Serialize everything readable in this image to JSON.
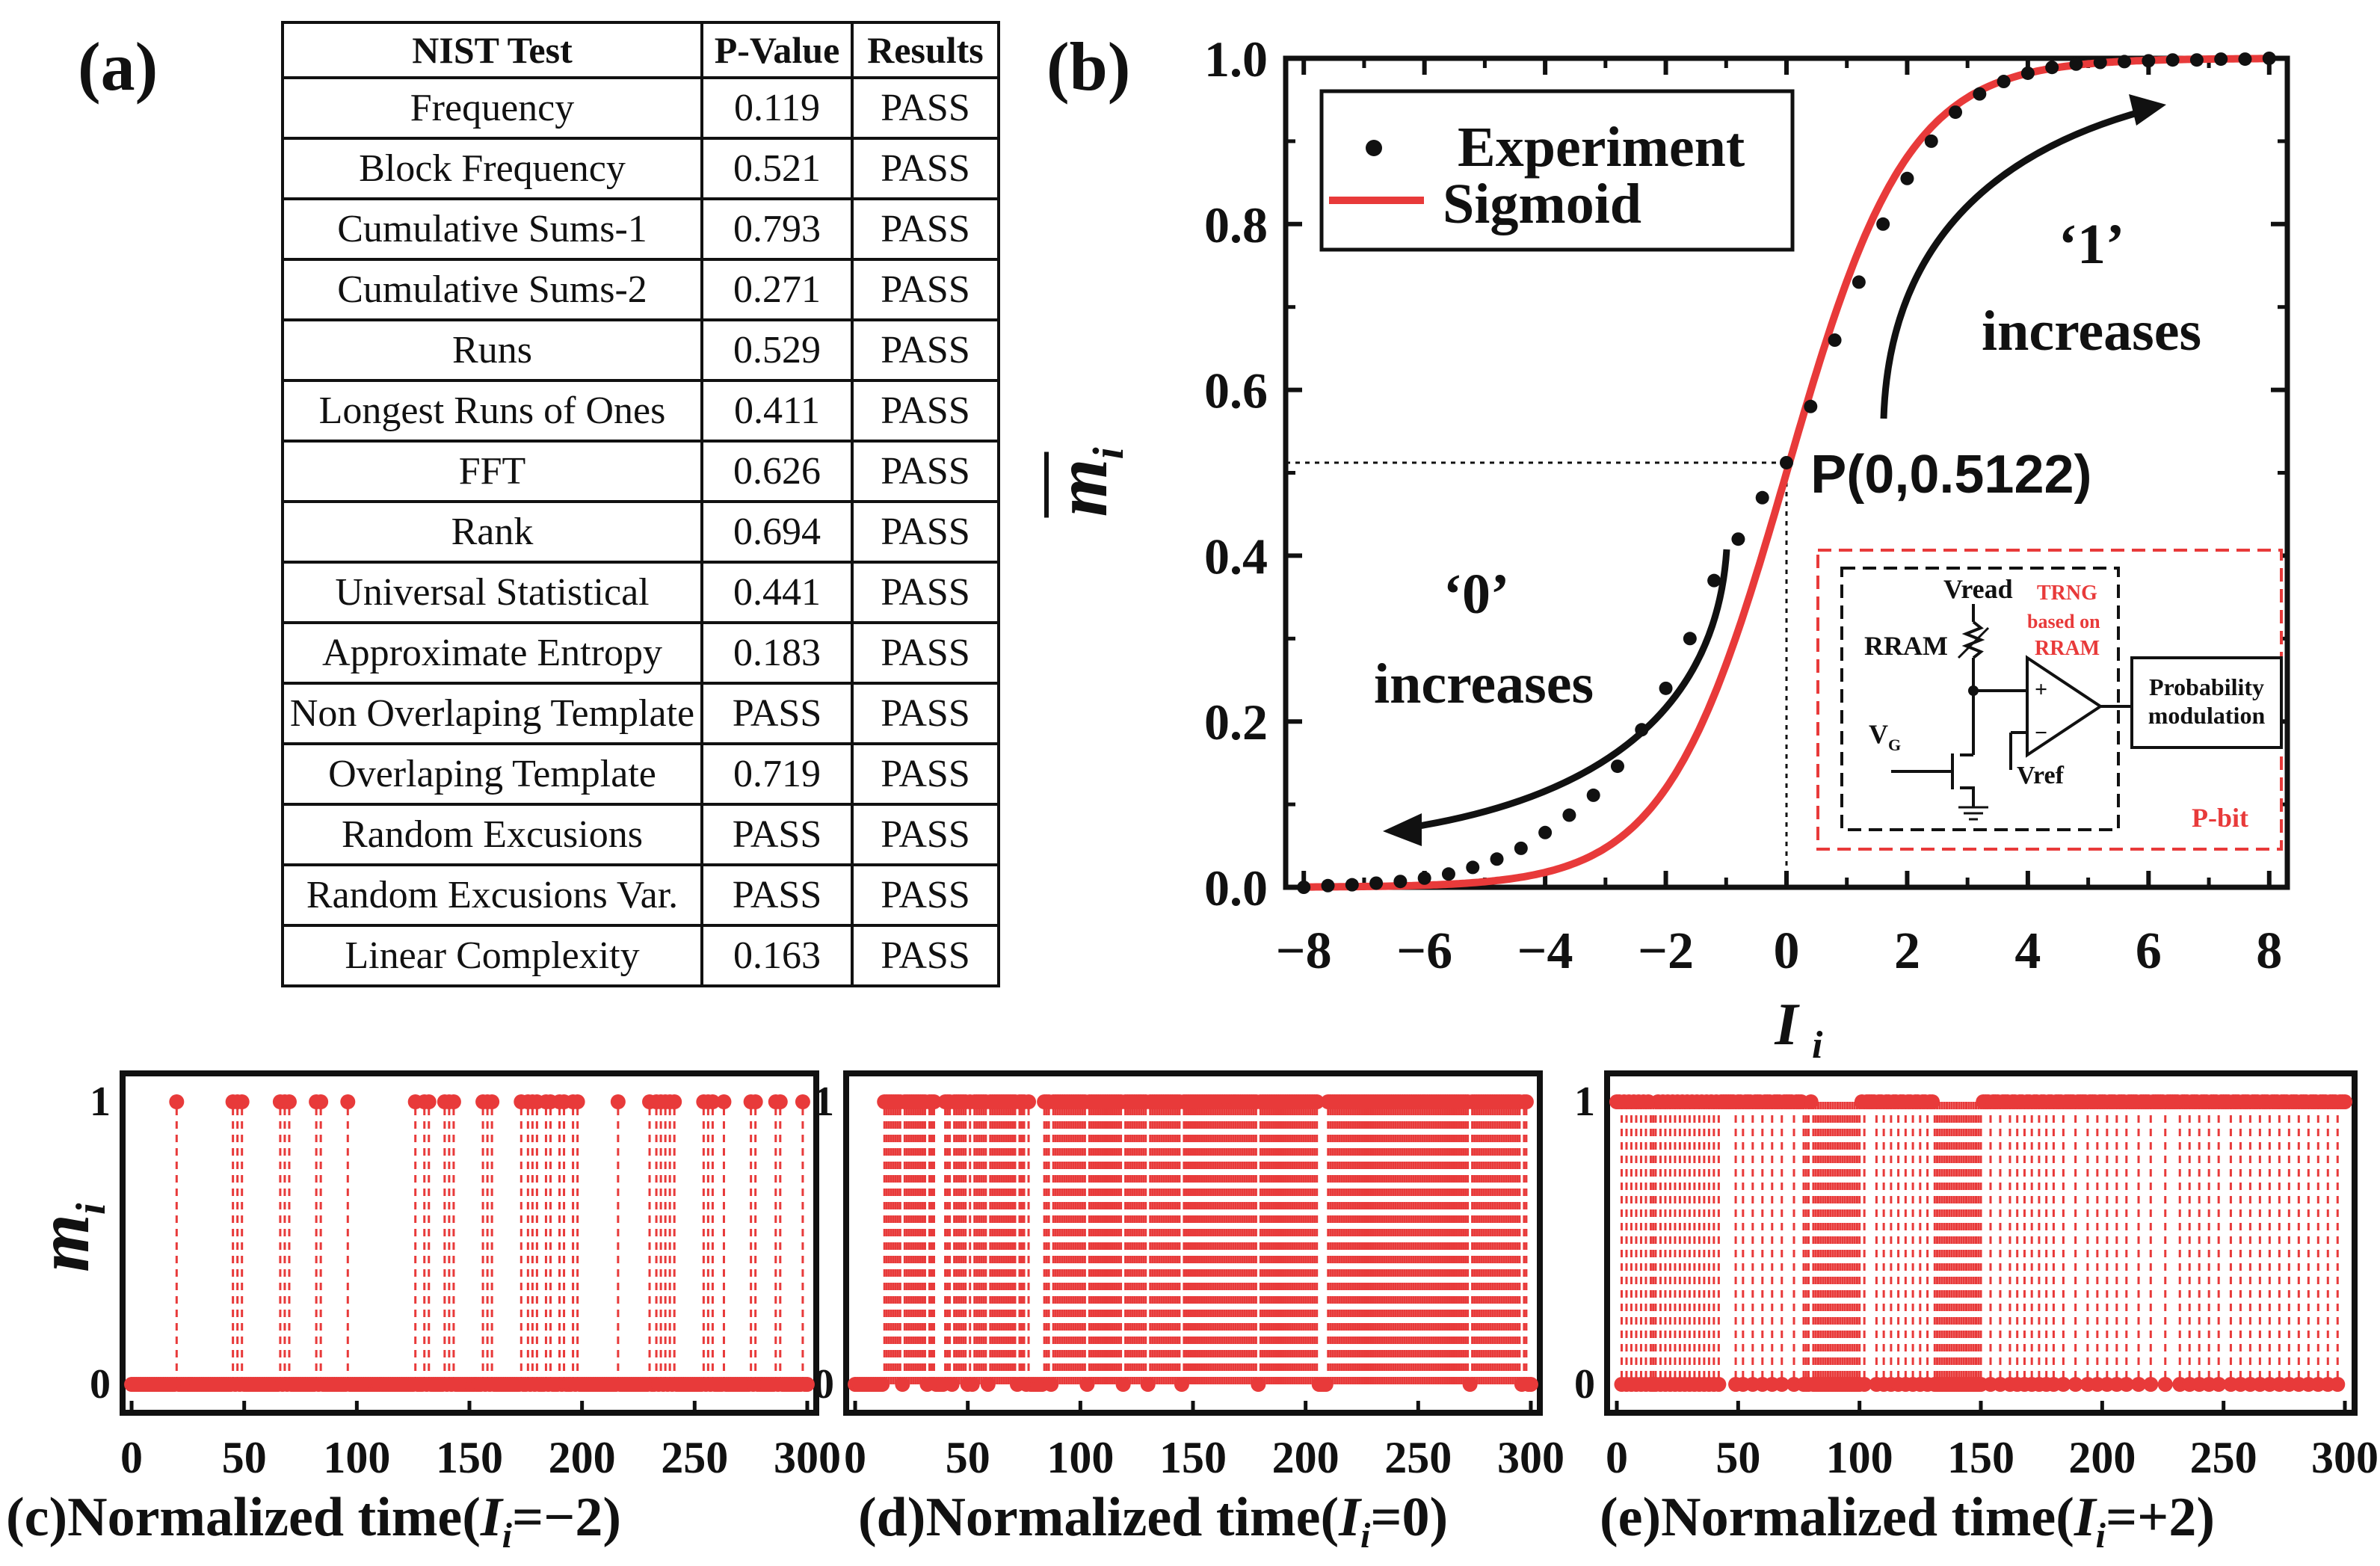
{
  "panels": {
    "a_label": "(a)",
    "b_label": "(b)",
    "c_title_pre": "(c)Normalized time(",
    "c_title_var": "I",
    "c_title_sub": "i",
    "c_title_post": "=−2)",
    "d_title_pre": "(d)Normalized time(",
    "d_title_var": "I",
    "d_title_sub": "i",
    "d_title_post": "=0)",
    "e_title_pre": "(e)Normalized time(",
    "e_title_var": "I",
    "e_title_sub": "i",
    "e_title_post": "=+2)"
  },
  "nist_table": {
    "headers": [
      "NIST Test",
      "P-Value",
      "Results"
    ],
    "rows": [
      [
        "Frequency",
        "0.119",
        "PASS"
      ],
      [
        "Block Frequency",
        "0.521",
        "PASS"
      ],
      [
        "Cumulative Sums-1",
        "0.793",
        "PASS"
      ],
      [
        "Cumulative Sums-2",
        "0.271",
        "PASS"
      ],
      [
        "Runs",
        "0.529",
        "PASS"
      ],
      [
        "Longest Runs of Ones",
        "0.411",
        "PASS"
      ],
      [
        "FFT",
        "0.626",
        "PASS"
      ],
      [
        "Rank",
        "0.694",
        "PASS"
      ],
      [
        "Universal Statistical",
        "0.441",
        "PASS"
      ],
      [
        "Approximate Entropy",
        "0.183",
        "PASS"
      ],
      [
        "Non Overlaping Template",
        "PASS",
        "PASS"
      ],
      [
        "Overlaping Template",
        "0.719",
        "PASS"
      ],
      [
        "Random Excusions",
        "PASS",
        "PASS"
      ],
      [
        "Random Excusions Var.",
        "PASS",
        "PASS"
      ],
      [
        "Linear Complexity",
        "0.163",
        "PASS"
      ]
    ]
  },
  "chart_data": [
    {
      "id": "b",
      "type": "scatter+line",
      "xlabel": "I",
      "xlabel_sub": "i",
      "ylabel": "m",
      "ylabel_sub": "i",
      "xlim": [
        -8.3,
        8.3
      ],
      "ylim": [
        0,
        1.0
      ],
      "xticks": [
        -8,
        -6,
        -4,
        -2,
        0,
        2,
        4,
        6,
        8
      ],
      "xtick_labels": [
        "−8",
        "−6",
        "−4",
        "−2",
        "0",
        "2",
        "4",
        "6",
        "8"
      ],
      "yticks": [
        0.0,
        0.2,
        0.4,
        0.6,
        0.8,
        1.0
      ],
      "ytick_labels": [
        "0.0",
        "0.2",
        "0.4",
        "0.6",
        "0.8",
        "1.0"
      ],
      "legend": [
        "Experiment",
        "Sigmoid"
      ],
      "legend_position": "top-left",
      "series": [
        {
          "name": "Experiment",
          "style": "black-dots",
          "x": [
            -8,
            -7.6,
            -7.2,
            -6.8,
            -6.4,
            -6,
            -5.6,
            -5.2,
            -4.8,
            -4.4,
            -4,
            -3.6,
            -3.2,
            -2.8,
            -2.4,
            -2,
            -1.6,
            -1.2,
            -0.8,
            -0.4,
            0,
            0.4,
            0.8,
            1.2,
            1.6,
            2,
            2.4,
            2.8,
            3.2,
            3.6,
            4,
            4.4,
            4.8,
            5.2,
            5.6,
            6,
            6.4,
            6.8,
            7.2,
            7.6,
            8
          ],
          "y": [
            0.0,
            0.002,
            0.003,
            0.005,
            0.007,
            0.011,
            0.016,
            0.024,
            0.034,
            0.047,
            0.066,
            0.087,
            0.111,
            0.146,
            0.19,
            0.24,
            0.3,
            0.37,
            0.42,
            0.47,
            0.5122,
            0.58,
            0.66,
            0.73,
            0.8,
            0.855,
            0.9,
            0.935,
            0.957,
            0.972,
            0.982,
            0.989,
            0.993,
            0.995,
            0.996,
            0.997,
            0.998,
            0.998,
            0.999,
            0.999,
            1.0
          ]
        },
        {
          "name": "Sigmoid",
          "style": "red-line",
          "function": "1/(1+exp(-x))"
        }
      ],
      "marked_point": {
        "label": "P(0,0.5122)",
        "x": 0,
        "y": 0.5122
      },
      "annotations": [
        {
          "text_1": "‘1’",
          "text_2": "increases"
        },
        {
          "text_1": "‘0’",
          "text_2": "increases"
        }
      ],
      "inset": {
        "vread": "Vread",
        "rram": "RRAM",
        "trng_1": "TRNG",
        "trng_2": "based on",
        "trng_3": "RRAM",
        "vg": "V",
        "vg_sub": "G",
        "vref": "Vref",
        "plus": "+",
        "minus": "−",
        "prob_1": "Probability",
        "prob_2": "modulation",
        "pbit": "P-bit"
      }
    },
    {
      "id": "c",
      "type": "binary-sequence",
      "ylabel": "m",
      "ylabel_sub": "i",
      "xlim": [
        -4,
        304
      ],
      "ylim": [
        0,
        1
      ],
      "xticks": [
        0,
        50,
        100,
        150,
        200,
        250,
        300
      ],
      "xtick_labels": [
        "0",
        "50",
        "100",
        "150",
        "200",
        "250",
        "300"
      ],
      "ytick_labels": [
        "0",
        "1"
      ],
      "ones_at": [
        20,
        45,
        47,
        49,
        66,
        68,
        70,
        82,
        84,
        96,
        126,
        130,
        132,
        139,
        141,
        143,
        156,
        158,
        160,
        173,
        176,
        178,
        180,
        184,
        186,
        190,
        192,
        196,
        198,
        216,
        230,
        233,
        235,
        237,
        239,
        241,
        254,
        256,
        258,
        263,
        275,
        277,
        286,
        288,
        298
      ]
    },
    {
      "id": "d",
      "type": "binary-sequence",
      "xlim": [
        -4,
        304
      ],
      "ylim": [
        0,
        1
      ],
      "xticks": [
        0,
        50,
        100,
        150,
        200,
        250,
        300
      ],
      "xtick_labels": [
        "0",
        "50",
        "100",
        "150",
        "200",
        "250",
        "300"
      ],
      "ytick_labels": [
        "0",
        "1"
      ],
      "ones_at": [
        13,
        14,
        15,
        16,
        17,
        18,
        19,
        20,
        22,
        23,
        24,
        25,
        26,
        27,
        28,
        29,
        30,
        31,
        33,
        34,
        35,
        40,
        41,
        42,
        44,
        45,
        46,
        47,
        48,
        49,
        51,
        53,
        54,
        55,
        56,
        57,
        58,
        60,
        61,
        62,
        63,
        64,
        65,
        66,
        67,
        68,
        69,
        70,
        71,
        73,
        74,
        75,
        77,
        84,
        85,
        86,
        88,
        89,
        90,
        91,
        92,
        93,
        94,
        95,
        96,
        97,
        98,
        99,
        100,
        101,
        102,
        104,
        105,
        106,
        107,
        108,
        109,
        110,
        111,
        112,
        113,
        114,
        115,
        116,
        117,
        118,
        120,
        121,
        122,
        123,
        124,
        125,
        126,
        127,
        128,
        129,
        131,
        132,
        133,
        134,
        135,
        136,
        137,
        138,
        139,
        140,
        141,
        142,
        143,
        144,
        146,
        147,
        148,
        149,
        150,
        151,
        152,
        153,
        154,
        155,
        156,
        157,
        158,
        159,
        160,
        161,
        162,
        163,
        164,
        165,
        166,
        167,
        168,
        169,
        170,
        171,
        172,
        173,
        174,
        175,
        176,
        177,
        178,
        180,
        181,
        182,
        183,
        184,
        185,
        186,
        187,
        188,
        189,
        190,
        191,
        192,
        193,
        194,
        195,
        196,
        197,
        198,
        199,
        200,
        201,
        202,
        203,
        204,
        205,
        210,
        211,
        212,
        213,
        214,
        215,
        216,
        217,
        218,
        219,
        220,
        221,
        222,
        223,
        224,
        225,
        226,
        227,
        228,
        229,
        230,
        231,
        232,
        233,
        234,
        235,
        236,
        237,
        238,
        239,
        240,
        241,
        242,
        243,
        244,
        245,
        246,
        247,
        248,
        249,
        250,
        251,
        252,
        253,
        254,
        255,
        256,
        257,
        258,
        259,
        260,
        261,
        262,
        263,
        264,
        265,
        266,
        267,
        268,
        269,
        270,
        271,
        272,
        274,
        275,
        276,
        277,
        278,
        279,
        280,
        281,
        282,
        283,
        284,
        285,
        286,
        287,
        288,
        289,
        290,
        291,
        292,
        293,
        294,
        295,
        297,
        298
      ]
    },
    {
      "id": "e",
      "type": "binary-sequence",
      "xlim": [
        -4,
        304
      ],
      "ylim": [
        0,
        1
      ],
      "xticks": [
        0,
        50,
        100,
        150,
        200,
        250,
        300
      ],
      "xtick_labels": [
        "0",
        "50",
        "100",
        "150",
        "200",
        "250",
        "300"
      ],
      "ytick_labels": [
        "0",
        "1"
      ],
      "zeros_at": [
        2,
        4,
        6,
        8,
        10,
        12,
        14,
        15,
        16,
        18,
        20,
        22,
        24,
        26,
        28,
        30,
        32,
        34,
        36,
        38,
        40,
        42,
        49,
        52,
        56,
        60,
        64,
        68,
        73,
        77,
        78,
        79,
        81,
        82,
        83,
        84,
        85,
        86,
        87,
        88,
        89,
        90,
        91,
        92,
        93,
        94,
        95,
        96,
        97,
        98,
        99,
        100,
        102,
        107,
        110,
        113,
        116,
        119,
        122,
        125,
        128,
        131,
        132,
        133,
        134,
        135,
        136,
        137,
        138,
        139,
        140,
        141,
        142,
        143,
        144,
        145,
        146,
        147,
        148,
        149,
        150,
        154,
        158,
        162,
        165,
        168,
        171,
        174,
        177,
        180,
        184,
        189,
        194,
        198,
        202,
        206,
        210,
        215,
        220,
        226,
        232,
        236,
        240,
        244,
        248,
        253,
        257,
        261,
        265,
        269,
        273,
        277,
        281,
        285,
        289,
        293,
        297
      ]
    }
  ]
}
